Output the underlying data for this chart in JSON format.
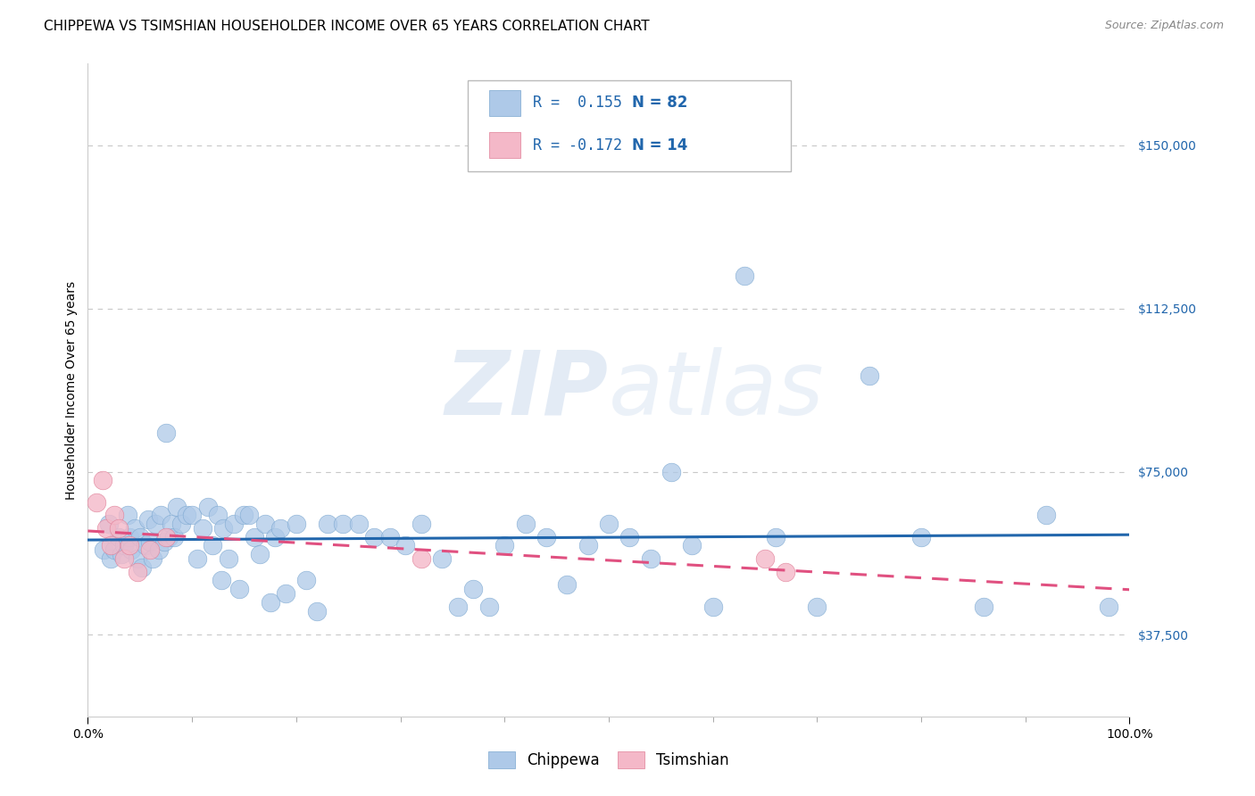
{
  "title": "CHIPPEWA VS TSIMSHIAN HOUSEHOLDER INCOME OVER 65 YEARS CORRELATION CHART",
  "source": "Source: ZipAtlas.com",
  "ylabel": "Householder Income Over 65 years",
  "xlim": [
    0,
    1
  ],
  "ylim": [
    18750,
    168750
  ],
  "ytick_vals": [
    37500,
    75000,
    112500,
    150000
  ],
  "ytick_labels": [
    "$37,500",
    "$75,000",
    "$112,500",
    "$150,000"
  ],
  "xtick_vals": [
    0.0,
    1.0
  ],
  "xtick_labels": [
    "0.0%",
    "100.0%"
  ],
  "xtick_minor": [
    0.1,
    0.2,
    0.3,
    0.4,
    0.5,
    0.6,
    0.7,
    0.8,
    0.9
  ],
  "watermark": "ZIPatlas",
  "legend_r1_label": "R =  0.155",
  "legend_r1_n": "N = 82",
  "legend_r2_label": "R = -0.172",
  "legend_r2_n": "N = 14",
  "chippewa_color": "#aec9e8",
  "chippewa_edge": "#7ba7d0",
  "tsimshian_color": "#f4b8c8",
  "tsimshian_edge": "#e08098",
  "trend_blue": "#2166ac",
  "trend_pink": "#e05080",
  "background_color": "#ffffff",
  "grid_color": "#c8c8c8",
  "ytick_color": "#2166ac",
  "title_fontsize": 11,
  "axis_label_fontsize": 10,
  "tick_fontsize": 10,
  "legend_fontsize": 12,
  "chip_x": [
    0.015,
    0.02,
    0.022,
    0.025,
    0.03,
    0.032,
    0.035,
    0.038,
    0.04,
    0.042,
    0.045,
    0.048,
    0.05,
    0.052,
    0.055,
    0.058,
    0.06,
    0.062,
    0.065,
    0.068,
    0.07,
    0.073,
    0.075,
    0.078,
    0.08,
    0.083,
    0.085,
    0.09,
    0.095,
    0.1,
    0.105,
    0.11,
    0.115,
    0.12,
    0.125,
    0.128,
    0.13,
    0.135,
    0.14,
    0.145,
    0.15,
    0.155,
    0.16,
    0.165,
    0.17,
    0.175,
    0.18,
    0.185,
    0.19,
    0.2,
    0.21,
    0.22,
    0.23,
    0.245,
    0.26,
    0.275,
    0.29,
    0.305,
    0.32,
    0.34,
    0.355,
    0.37,
    0.385,
    0.4,
    0.42,
    0.44,
    0.46,
    0.48,
    0.5,
    0.52,
    0.54,
    0.56,
    0.58,
    0.6,
    0.63,
    0.66,
    0.7,
    0.75,
    0.8,
    0.86,
    0.92,
    0.98
  ],
  "chip_y": [
    57000,
    63000,
    55000,
    57000,
    60000,
    56000,
    58000,
    65000,
    60000,
    57000,
    62000,
    55000,
    60000,
    53000,
    58000,
    64000,
    59000,
    55000,
    63000,
    57000,
    65000,
    59000,
    84000,
    60000,
    63000,
    60000,
    67000,
    63000,
    65000,
    65000,
    55000,
    62000,
    67000,
    58000,
    65000,
    50000,
    62000,
    55000,
    63000,
    48000,
    65000,
    65000,
    60000,
    56000,
    63000,
    45000,
    60000,
    62000,
    47000,
    63000,
    50000,
    43000,
    63000,
    63000,
    63000,
    60000,
    60000,
    58000,
    63000,
    55000,
    44000,
    48000,
    44000,
    58000,
    63000,
    60000,
    49000,
    58000,
    63000,
    60000,
    55000,
    75000,
    58000,
    44000,
    120000,
    60000,
    44000,
    97000,
    60000,
    44000,
    65000,
    44000
  ],
  "tsi_x": [
    0.008,
    0.014,
    0.018,
    0.022,
    0.025,
    0.03,
    0.035,
    0.04,
    0.048,
    0.06,
    0.075,
    0.32,
    0.65,
    0.67
  ],
  "tsi_y": [
    68000,
    73000,
    62000,
    58000,
    65000,
    62000,
    55000,
    58000,
    52000,
    57000,
    60000,
    55000,
    55000,
    52000
  ]
}
